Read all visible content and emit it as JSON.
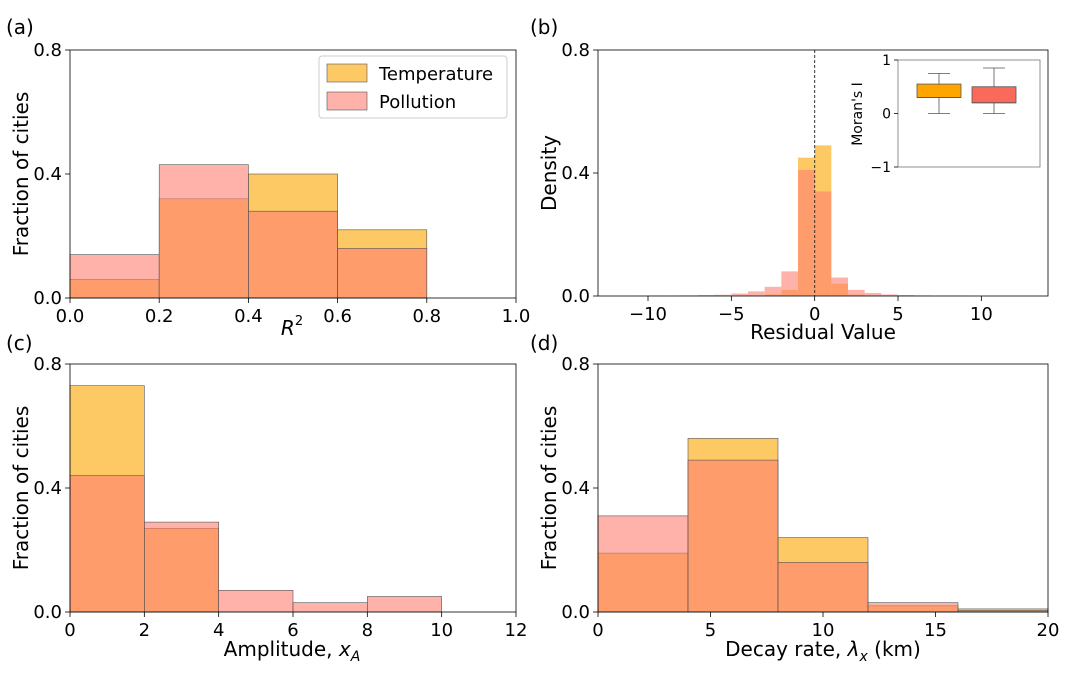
{
  "colors": {
    "temperature": "#FBBC3F",
    "pollution": "#FF7F70",
    "overlap": "#FF9A66",
    "box_temp": "#FFA500",
    "box_poll": "#FA6A5B"
  },
  "chart_data": [
    {
      "id": "a",
      "panel_label": "(a)",
      "type": "bar",
      "xlabel_main": "R",
      "xlabel_sup": "2",
      "ylabel": "Fraction of cities",
      "xlim": [
        0,
        1.0
      ],
      "ylim": [
        0,
        0.8
      ],
      "xticks": [
        0,
        0.2,
        0.4,
        0.6,
        0.8,
        1.0
      ],
      "xtick_labels": [
        "0.0",
        "0.2",
        "0.4",
        "0.6",
        "0.8",
        "1.0"
      ],
      "yticks": [
        0,
        0.4,
        0.8
      ],
      "ytick_labels": [
        "0.0",
        "0.4",
        "0.8"
      ],
      "bin_edges": [
        0,
        0.2,
        0.4,
        0.6,
        0.8
      ],
      "series": [
        {
          "name": "Temperature",
          "values": [
            0.06,
            0.32,
            0.4,
            0.22
          ]
        },
        {
          "name": "Pollution",
          "values": [
            0.14,
            0.43,
            0.28,
            0.16
          ]
        }
      ],
      "legend": [
        "Temperature",
        "Pollution"
      ],
      "legend_position": "top-right"
    },
    {
      "id": "b",
      "panel_label": "(b)",
      "type": "bar",
      "xlabel": "Residual Value",
      "ylabel": "Density",
      "xlim": [
        -13,
        14
      ],
      "ylim": [
        0,
        0.8
      ],
      "xticks": [
        -10,
        -5,
        0,
        5,
        10
      ],
      "xtick_labels": [
        "−10",
        "−5",
        "0",
        "5",
        "10"
      ],
      "yticks": [
        0,
        0.4,
        0.8
      ],
      "ytick_labels": [
        "0.0",
        "0.4",
        "0.8"
      ],
      "bin_edges": [
        -12,
        -11,
        -10,
        -9,
        -8,
        -7,
        -6,
        -5,
        -4,
        -3,
        -2,
        -1,
        0,
        1,
        2,
        3,
        4,
        5,
        6,
        7,
        8,
        9,
        10,
        11,
        12
      ],
      "series": [
        {
          "name": "Temperature",
          "values": [
            0,
            0,
            0,
            0,
            0,
            0,
            0,
            0.001,
            0.002,
            0.005,
            0.02,
            0.45,
            0.49,
            0.04,
            0.005,
            0.002,
            0.001,
            0,
            0,
            0,
            0,
            0,
            0,
            0
          ]
        },
        {
          "name": "Pollution",
          "values": [
            0,
            0.0005,
            0.001,
            0.001,
            0.002,
            0.003,
            0.004,
            0.008,
            0.015,
            0.03,
            0.08,
            0.41,
            0.34,
            0.06,
            0.02,
            0.01,
            0.005,
            0.003,
            0.002,
            0.001,
            0.001,
            0.0005,
            0,
            0
          ]
        }
      ],
      "reference_line_x": 0,
      "inset": {
        "type": "box",
        "ylabel": "Moran's I",
        "ylim": [
          -1,
          1
        ],
        "yticks": [
          -1,
          0,
          1
        ],
        "ytick_labels": [
          "−1",
          "0",
          "1"
        ],
        "boxes": [
          {
            "name": "Temperature",
            "whisker_low": 0.0,
            "q1": 0.3,
            "median": 0.3,
            "q3": 0.55,
            "whisker_high": 0.75
          },
          {
            "name": "Pollution",
            "whisker_low": 0.0,
            "q1": 0.2,
            "median": 0.2,
            "q3": 0.5,
            "whisker_high": 0.85
          }
        ]
      }
    },
    {
      "id": "c",
      "panel_label": "(c)",
      "type": "bar",
      "xlabel_main": "Amplitude, ",
      "xlabel_sym": "x",
      "xlabel_sub": "A",
      "ylabel": "Fraction of cities",
      "xlim": [
        0,
        12
      ],
      "ylim": [
        0,
        0.8
      ],
      "xticks": [
        0,
        2,
        4,
        6,
        8,
        10,
        12
      ],
      "xtick_labels": [
        "0",
        "2",
        "4",
        "6",
        "8",
        "10",
        "12"
      ],
      "yticks": [
        0,
        0.4,
        0.8
      ],
      "ytick_labels": [
        "0.0",
        "0.4",
        "0.8"
      ],
      "bin_edges": [
        0,
        2,
        4,
        6,
        8,
        10
      ],
      "series": [
        {
          "name": "Temperature",
          "values": [
            0.73,
            0.27,
            0,
            0,
            0
          ]
        },
        {
          "name": "Pollution",
          "values": [
            0.44,
            0.29,
            0.07,
            0.03,
            0.05
          ]
        }
      ]
    },
    {
      "id": "d",
      "panel_label": "(d)",
      "type": "bar",
      "xlabel_main": "Decay rate, ",
      "xlabel_sym": "λ",
      "xlabel_sub": "x",
      "xlabel_post": " (km)",
      "ylabel": "Fraction of cities",
      "xlim": [
        0,
        20
      ],
      "ylim": [
        0,
        0.8
      ],
      "xticks": [
        0,
        5,
        10,
        15,
        20
      ],
      "xtick_labels": [
        "0",
        "5",
        "10",
        "15",
        "20"
      ],
      "yticks": [
        0,
        0.4,
        0.8
      ],
      "ytick_labels": [
        "0.0",
        "0.4",
        "0.8"
      ],
      "bin_edges": [
        0,
        4,
        8,
        12,
        16,
        20
      ],
      "series": [
        {
          "name": "Temperature",
          "values": [
            0.19,
            0.56,
            0.24,
            0.02,
            0.01
          ]
        },
        {
          "name": "Pollution",
          "values": [
            0.31,
            0.49,
            0.16,
            0.03,
            0.005
          ]
        }
      ]
    }
  ]
}
